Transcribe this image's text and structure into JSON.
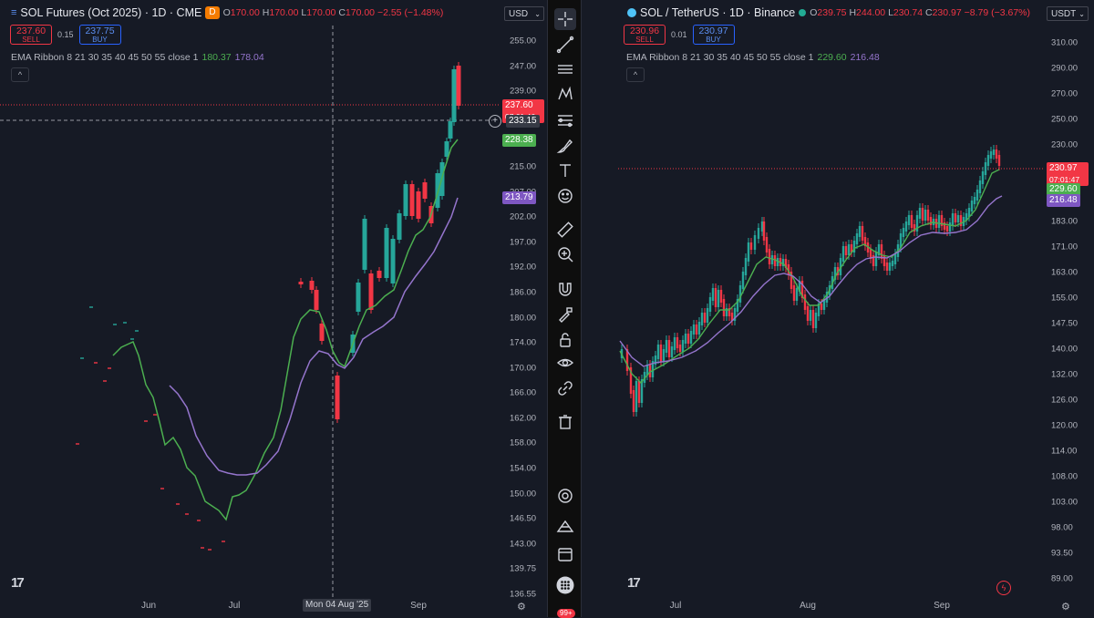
{
  "left": {
    "symbol": "SOL Futures (Oct 2025) · 1D · CME",
    "badge": "D",
    "ohlc": {
      "o_label": "O",
      "o": "170.00",
      "h_label": "H",
      "h": "170.00",
      "l_label": "L",
      "l": "170.00",
      "c_label": "C",
      "c": "170.00",
      "change": "−2.55 (−1.48%)"
    },
    "sell": {
      "price": "237.60",
      "label": "SELL"
    },
    "buy": {
      "price": "237.75",
      "label": "BUY"
    },
    "spread": "0.15",
    "indicator": {
      "label": "EMA Ribbon 8 21 30 35 40 45 50 55 close 1",
      "v1": "180.37",
      "v2": "178.04"
    },
    "currency": "USD",
    "yticks": [
      "255.00",
      "247.00",
      "239.00",
      "231.00",
      "223.00",
      "215.00",
      "207.00",
      "202.00",
      "197.00",
      "192.00",
      "186.00",
      "180.00",
      "174.00",
      "170.00",
      "166.00",
      "162.00",
      "158.00",
      "154.00",
      "150.00",
      "146.50",
      "143.00",
      "139.75",
      "136.55"
    ],
    "price_tag": "237.60",
    "countdown": "07:01:46",
    "crosshair_tag": "233.15",
    "ema_tag1": "228.38",
    "ema_tag2": "213.79",
    "xticks": [
      "Jun",
      "Jul",
      "Sep"
    ],
    "crosshair_date": "Mon 04 Aug '25"
  },
  "right": {
    "symbol": "SOL / TetherUS · 1D · Binance",
    "ohlc": {
      "o_label": "O",
      "o": "239.75",
      "h_label": "H",
      "h": "244.00",
      "l_label": "L",
      "l": "230.74",
      "c_label": "C",
      "c": "230.97",
      "change": "−8.79 (−3.67%)"
    },
    "sell": {
      "price": "230.96",
      "label": "SELL"
    },
    "buy": {
      "price": "230.97",
      "label": "BUY"
    },
    "spread": "0.01",
    "indicator": {
      "label": "EMA Ribbon 8 21 30 35 40 45 50 55 close 1",
      "v1": "229.60",
      "v2": "216.48"
    },
    "currency": "USDT",
    "yticks": [
      "310.00",
      "290.00",
      "270.00",
      "250.00",
      "230.00",
      "205.00",
      "195.00",
      "183.00",
      "171.00",
      "163.00",
      "155.00",
      "147.50",
      "140.00",
      "132.00",
      "126.00",
      "120.00",
      "114.00",
      "108.00",
      "103.00",
      "98.00",
      "93.50",
      "89.00"
    ],
    "price_tag": "230.97",
    "countdown": "07:01:47",
    "ema_tag1": "229.60",
    "ema_tag2": "216.48",
    "xticks": [
      "Jul",
      "Aug",
      "Sep"
    ]
  },
  "toolbar": {
    "notification_count": "99+",
    "tools": [
      "crosshair-icon",
      "trend-line-icon",
      "horizontal-lines-icon",
      "pattern-icon",
      "measure-lines-icon",
      "brush-icon",
      "text-icon",
      "emoji-icon",
      "ruler-icon",
      "zoom-in-icon",
      "magnet-icon",
      "lock-drawing-icon",
      "lock-icon",
      "eye-icon",
      "link-icon",
      "trash-icon"
    ]
  },
  "colors": {
    "bg": "#161a25",
    "up": "#26a69a",
    "down": "#f23645",
    "ema_fast": "#4caf50",
    "ema_slow": "#9575cd",
    "price_tag": "#f23645"
  }
}
